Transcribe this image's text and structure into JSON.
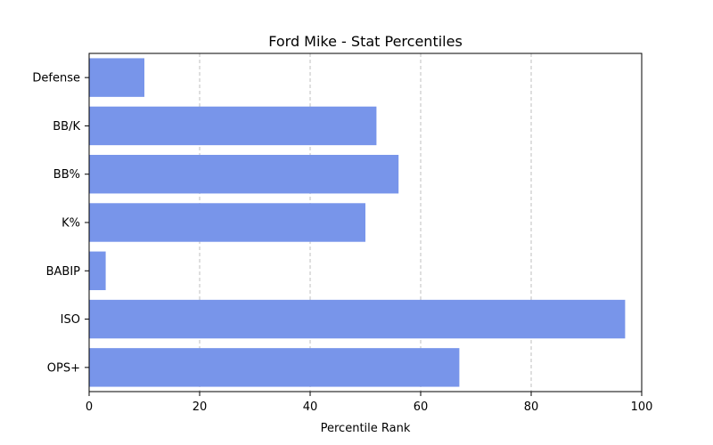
{
  "chart_data": {
    "type": "bar",
    "orientation": "horizontal",
    "title": "Ford Mike - Stat Percentiles",
    "xlabel": "Percentile Rank",
    "ylabel": "",
    "categories": [
      "Defense",
      "BB/K",
      "BB%",
      "K%",
      "BABIP",
      "ISO",
      "OPS+"
    ],
    "values": [
      10,
      52,
      56,
      50,
      3,
      97,
      67
    ],
    "xlim": [
      0,
      100
    ],
    "xticks": [
      "0",
      "20",
      "40",
      "60",
      "80",
      "100"
    ],
    "grid": "vertical dashed",
    "bar_color": "#7895ea"
  }
}
